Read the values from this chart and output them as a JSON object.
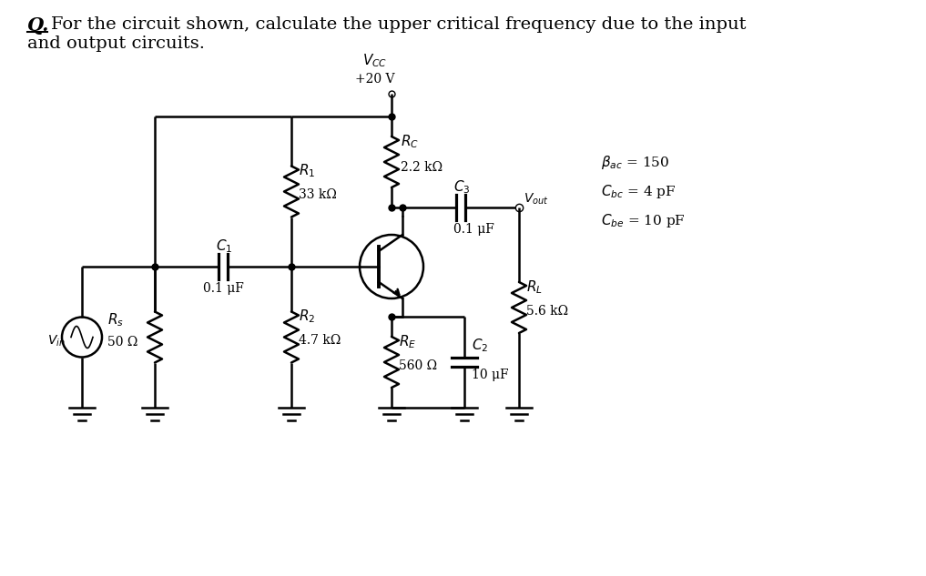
{
  "title_q": "Q.",
  "title_text": " For the circuit shown, calculate the upper critical frequency due to the input\nand output circuits.",
  "background_color": "#ffffff",
  "text_color": "#000000",
  "line_color": "#000000",
  "fig_width": 10.17,
  "fig_height": 6.33,
  "params": {
    "Vcc": "V_{CC}",
    "Vcc_val": "+20 V",
    "Rc": "2.2 kΩ",
    "R1": "33 kΩ",
    "R2": "4.7 kΩ",
    "RE": "560 Ω",
    "Rs": "50 Ω",
    "RL": "5.6 kΩ",
    "C1": "0.1 μF",
    "C2": "10 μF",
    "C3": "0.1 μF",
    "Bac": "150",
    "Cbc": "4 pF",
    "Cbe": "10 pF"
  }
}
